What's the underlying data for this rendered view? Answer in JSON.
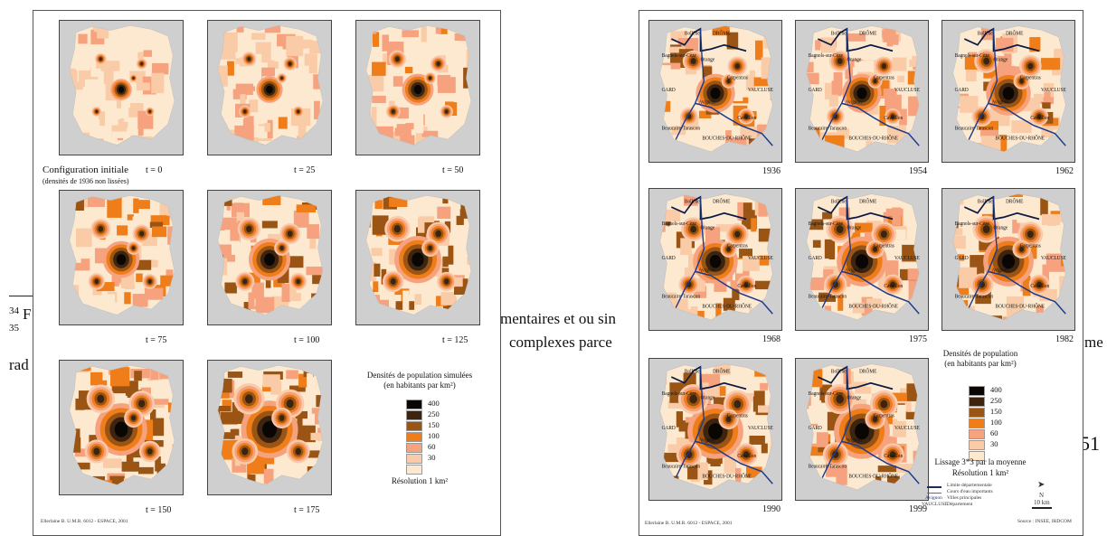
{
  "background_text": {
    "footnote_34": "34",
    "footnote_35": "35",
    "line1": "mentaires et ou sin",
    "line2": "complexes parce",
    "line3_left": "rad",
    "line3_right": "me",
    "page_number": "51",
    "letter_b": "F"
  },
  "left_figure": {
    "first_caption": "Configuration initiale",
    "first_subcaption": "(densités de 1936 non lissées)",
    "maps": [
      {
        "label": "t = 0"
      },
      {
        "label": "t = 25"
      },
      {
        "label": "t = 50"
      },
      {
        "label": "t = 75"
      },
      {
        "label": "t = 100"
      },
      {
        "label": "t = 125"
      },
      {
        "label": "t = 150"
      },
      {
        "label": "t = 175"
      }
    ],
    "legend": {
      "title": "Densités de population simulées",
      "subtitle": "(en habitants par km²)",
      "items": [
        {
          "label": "400",
          "color": "#0a0603"
        },
        {
          "label": "250",
          "color": "#3d2410"
        },
        {
          "label": "150",
          "color": "#9a5414"
        },
        {
          "label": "100",
          "color": "#ef7d1a"
        },
        {
          "label": "60",
          "color": "#f6a27e"
        },
        {
          "label": "30",
          "color": "#f9cba7"
        },
        {
          "label": "",
          "color": "#fde9cf"
        }
      ],
      "resolution": "Résolution 1 km²"
    },
    "credit": "Ellerlaine B. U.M.R. 6012 - ESPACE, 2001"
  },
  "right_figure": {
    "maps": [
      {
        "year": "1936"
      },
      {
        "year": "1954"
      },
      {
        "year": "1962"
      },
      {
        "year": "1968"
      },
      {
        "year": "1975"
      },
      {
        "year": "1982"
      },
      {
        "year": "1990"
      },
      {
        "year": "1999"
      }
    ],
    "map_labels": {
      "bollene": "Bollène",
      "drome": "DRÔME",
      "bagnols": "Bagnols-sur-Cèze",
      "orange": "Orange",
      "carpentras": "Carpentras",
      "gard": "GARD",
      "vaucluse": "VAUCLUSE",
      "avignon": "Avignon",
      "cavaillon": "Cavaillon",
      "beaucaire": "Beaucaire-Tarascon",
      "bdr": "BOUCHES-DU-RHÔNE",
      "rhone": "Rhône",
      "durance": "Durance"
    },
    "legend": {
      "title": "Densités de population",
      "subtitle": "(en habitants par km²)",
      "items": [
        {
          "label": "400",
          "color": "#0a0603"
        },
        {
          "label": "250",
          "color": "#3d2410"
        },
        {
          "label": "150",
          "color": "#9a5414"
        },
        {
          "label": "100",
          "color": "#ef7d1a"
        },
        {
          "label": "60",
          "color": "#f6a27e"
        },
        {
          "label": "30",
          "color": "#f9cba7"
        },
        {
          "label": "",
          "color": "#fde9cf"
        }
      ],
      "smoothing": "Lissage 3*3 par la moyenne",
      "resolution": "Résolution 1 km²",
      "key_limit": "Limite départementale",
      "key_river": "Cours d'eau importants",
      "key_city_example": "Avignon",
      "key_city": "Villes principales",
      "key_dept_example": "VAUCLUSE",
      "key_dept": "Département",
      "north": "N",
      "scale": "10 km"
    },
    "credit": "Ellerlaine B. U.M.R. 6012 - ESPACE, 2001",
    "source": "Source : INSEE, IRDCOM"
  }
}
